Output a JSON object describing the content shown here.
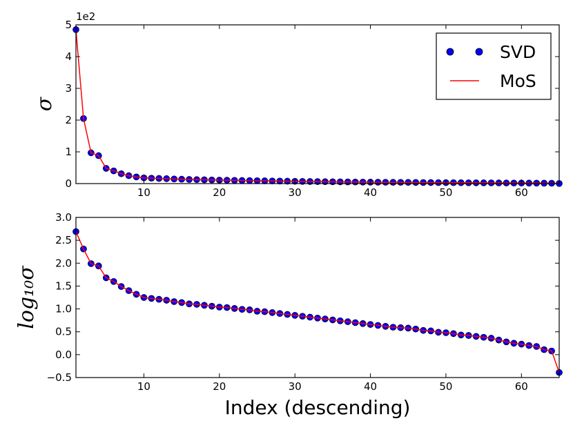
{
  "chart_data": [
    {
      "type": "scatter",
      "title": "",
      "xlabel": "",
      "ylabel": "σ",
      "offset_text": "1e2",
      "xlim": [
        1,
        65
      ],
      "ylim": [
        0,
        5
      ],
      "x_ticks": [
        10,
        20,
        30,
        40,
        50,
        60
      ],
      "y_ticks": [
        0,
        1,
        2,
        3,
        4,
        5
      ],
      "x_tick_labels": [
        "10",
        "20",
        "30",
        "40",
        "50",
        "60"
      ],
      "y_tick_labels": [
        "0",
        "1",
        "2",
        "3",
        "4",
        "5"
      ],
      "legend": {
        "position": "top-right",
        "entries": [
          "SVD",
          "MoS"
        ]
      },
      "series": [
        {
          "name": "SVD",
          "style": "markers",
          "color": "#0000ff",
          "x": [
            1,
            2,
            3,
            4,
            5,
            6,
            7,
            8,
            9,
            10,
            11,
            12,
            13,
            14,
            15,
            16,
            17,
            18,
            19,
            20,
            21,
            22,
            23,
            24,
            25,
            26,
            27,
            28,
            29,
            30,
            31,
            32,
            33,
            34,
            35,
            36,
            37,
            38,
            39,
            40,
            41,
            42,
            43,
            44,
            45,
            46,
            47,
            48,
            49,
            50,
            51,
            52,
            53,
            54,
            55,
            56,
            57,
            58,
            59,
            60,
            61,
            62,
            63,
            64,
            65
          ],
          "values": [
            4.85,
            2.05,
            0.97,
            0.88,
            0.48,
            0.4,
            0.31,
            0.25,
            0.21,
            0.18,
            0.17,
            0.163,
            0.155,
            0.145,
            0.138,
            0.13,
            0.125,
            0.12,
            0.115,
            0.11,
            0.106,
            0.102,
            0.098,
            0.095,
            0.09,
            0.087,
            0.083,
            0.08,
            0.076,
            0.072,
            0.069,
            0.066,
            0.063,
            0.06,
            0.058,
            0.055,
            0.052,
            0.05,
            0.048,
            0.046,
            0.044,
            0.042,
            0.04,
            0.039,
            0.038,
            0.036,
            0.034,
            0.033,
            0.031,
            0.03,
            0.029,
            0.027,
            0.026,
            0.025,
            0.024,
            0.023,
            0.021,
            0.019,
            0.018,
            0.017,
            0.016,
            0.015,
            0.013,
            0.012,
            0.004
          ]
        },
        {
          "name": "MoS",
          "style": "line",
          "color": "#ff0000",
          "x": [
            1,
            2,
            3,
            4,
            5,
            6,
            7,
            8,
            9,
            10,
            11,
            12,
            13,
            14,
            15,
            16,
            17,
            18,
            19,
            20,
            21,
            22,
            23,
            24,
            25,
            26,
            27,
            28,
            29,
            30,
            31,
            32,
            33,
            34,
            35,
            36,
            37,
            38,
            39,
            40,
            41,
            42,
            43,
            44,
            45,
            46,
            47,
            48,
            49,
            50,
            51,
            52,
            53,
            54,
            55,
            56,
            57,
            58,
            59,
            60,
            61,
            62,
            63,
            64,
            65
          ],
          "values": [
            4.85,
            2.05,
            0.97,
            0.88,
            0.48,
            0.4,
            0.31,
            0.25,
            0.21,
            0.18,
            0.17,
            0.163,
            0.155,
            0.145,
            0.138,
            0.13,
            0.125,
            0.12,
            0.115,
            0.11,
            0.106,
            0.102,
            0.098,
            0.095,
            0.09,
            0.087,
            0.083,
            0.08,
            0.076,
            0.072,
            0.069,
            0.066,
            0.063,
            0.06,
            0.058,
            0.055,
            0.052,
            0.05,
            0.048,
            0.046,
            0.044,
            0.042,
            0.04,
            0.039,
            0.038,
            0.036,
            0.034,
            0.033,
            0.031,
            0.03,
            0.029,
            0.027,
            0.026,
            0.025,
            0.024,
            0.023,
            0.021,
            0.019,
            0.018,
            0.017,
            0.016,
            0.015,
            0.013,
            0.012,
            0.004
          ]
        }
      ]
    },
    {
      "type": "scatter",
      "title": "",
      "xlabel": "Index (descending)",
      "ylabel": "log₁₀σ",
      "xlim": [
        1,
        65
      ],
      "ylim": [
        -0.5,
        3.0
      ],
      "x_ticks": [
        10,
        20,
        30,
        40,
        50,
        60
      ],
      "y_ticks": [
        -0.5,
        0.0,
        0.5,
        1.0,
        1.5,
        2.0,
        2.5,
        3.0
      ],
      "x_tick_labels": [
        "10",
        "20",
        "30",
        "40",
        "50",
        "60"
      ],
      "y_tick_labels": [
        "−0.5",
        "0.0",
        "0.5",
        "1.0",
        "1.5",
        "2.0",
        "2.5",
        "3.0"
      ],
      "series": [
        {
          "name": "SVD",
          "style": "markers",
          "color": "#0000ff",
          "x": [
            1,
            2,
            3,
            4,
            5,
            6,
            7,
            8,
            9,
            10,
            11,
            12,
            13,
            14,
            15,
            16,
            17,
            18,
            19,
            20,
            21,
            22,
            23,
            24,
            25,
            26,
            27,
            28,
            29,
            30,
            31,
            32,
            33,
            34,
            35,
            36,
            37,
            38,
            39,
            40,
            41,
            42,
            43,
            44,
            45,
            46,
            47,
            48,
            49,
            50,
            51,
            52,
            53,
            54,
            55,
            56,
            57,
            58,
            59,
            60,
            61,
            62,
            63,
            64,
            65
          ],
          "values": [
            2.69,
            2.31,
            1.99,
            1.94,
            1.68,
            1.6,
            1.49,
            1.4,
            1.32,
            1.25,
            1.23,
            1.21,
            1.19,
            1.16,
            1.14,
            1.11,
            1.1,
            1.08,
            1.06,
            1.04,
            1.03,
            1.01,
            0.99,
            0.98,
            0.95,
            0.94,
            0.92,
            0.9,
            0.88,
            0.86,
            0.84,
            0.82,
            0.8,
            0.78,
            0.76,
            0.74,
            0.72,
            0.7,
            0.68,
            0.66,
            0.64,
            0.62,
            0.6,
            0.59,
            0.58,
            0.56,
            0.53,
            0.52,
            0.49,
            0.48,
            0.46,
            0.43,
            0.42,
            0.4,
            0.38,
            0.36,
            0.32,
            0.28,
            0.25,
            0.23,
            0.2,
            0.18,
            0.11,
            0.08,
            -0.39
          ]
        },
        {
          "name": "MoS",
          "style": "line",
          "color": "#ff0000",
          "x": [
            1,
            2,
            3,
            4,
            5,
            6,
            7,
            8,
            9,
            10,
            11,
            12,
            13,
            14,
            15,
            16,
            17,
            18,
            19,
            20,
            21,
            22,
            23,
            24,
            25,
            26,
            27,
            28,
            29,
            30,
            31,
            32,
            33,
            34,
            35,
            36,
            37,
            38,
            39,
            40,
            41,
            42,
            43,
            44,
            45,
            46,
            47,
            48,
            49,
            50,
            51,
            52,
            53,
            54,
            55,
            56,
            57,
            58,
            59,
            60,
            61,
            62,
            63,
            64,
            65
          ],
          "values": [
            2.69,
            2.31,
            1.99,
            1.94,
            1.68,
            1.6,
            1.49,
            1.4,
            1.32,
            1.25,
            1.23,
            1.21,
            1.19,
            1.16,
            1.14,
            1.11,
            1.1,
            1.08,
            1.06,
            1.04,
            1.03,
            1.01,
            0.99,
            0.98,
            0.95,
            0.94,
            0.92,
            0.9,
            0.88,
            0.86,
            0.84,
            0.82,
            0.8,
            0.78,
            0.76,
            0.74,
            0.72,
            0.7,
            0.68,
            0.66,
            0.64,
            0.62,
            0.6,
            0.59,
            0.58,
            0.56,
            0.53,
            0.52,
            0.49,
            0.48,
            0.46,
            0.43,
            0.42,
            0.4,
            0.38,
            0.36,
            0.32,
            0.28,
            0.25,
            0.23,
            0.2,
            0.18,
            0.11,
            0.08,
            -0.39
          ]
        }
      ]
    }
  ]
}
